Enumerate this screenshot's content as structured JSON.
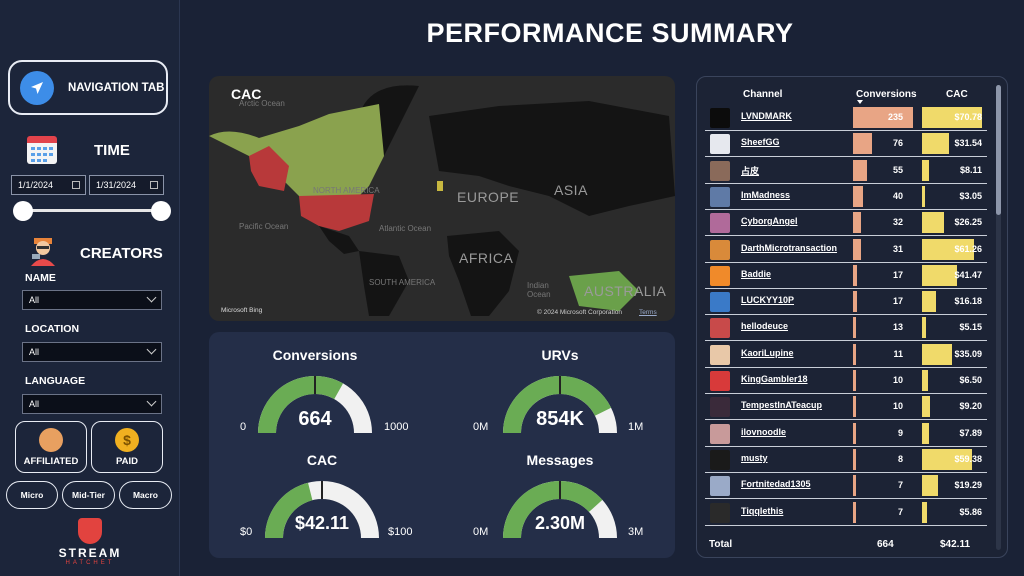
{
  "title": "PERFORMANCE SUMMARY",
  "sidebar": {
    "nav_label": "NAVIGATION TAB",
    "time_label": "TIME",
    "date_start": "1/1/2024",
    "date_end": "1/31/2024",
    "creators_label": "CREATORS",
    "filters": [
      {
        "label": "NAME",
        "value": "All"
      },
      {
        "label": "LOCATION",
        "value": "All"
      },
      {
        "label": "LANGUAGE",
        "value": "All"
      }
    ],
    "types": [
      {
        "label": "AFFILIATED",
        "icon": "handshake-icon"
      },
      {
        "label": "PAID",
        "icon": "dollar-coin-icon"
      }
    ],
    "tiers": [
      "Micro",
      "Mid-Tier",
      "Macro"
    ],
    "logo_text": "STREAM",
    "logo_sub": "HATCHET"
  },
  "map": {
    "title": "CAC",
    "labels": {
      "arctic": "Arctic Ocean",
      "north_america": "NORTH AMERICA",
      "europe": "EUROPE",
      "asia": "ASIA",
      "africa": "AFRICA",
      "south_america": "SOUTH AMERICA",
      "pacific": "Pacific Ocean",
      "atlantic": "Atlantic Ocean",
      "indian": "Indian Ocean",
      "australia": "AUSTRALIA"
    },
    "attribution": "Microsoft Bing",
    "copyright": "© 2024 Microsoft Corporation",
    "terms": "Terms"
  },
  "gauges": [
    {
      "title": "Conversions",
      "value": "664",
      "min": "0",
      "max": "1000",
      "fill": 0.664,
      "target": 0.5
    },
    {
      "title": "URVs",
      "value": "854K",
      "min": "0M",
      "max": "1M",
      "fill": 0.854,
      "target": 0.5
    },
    {
      "title": "CAC",
      "value": "$42.11",
      "min": "$0",
      "max": "$100",
      "fill": 0.4211,
      "target": 0.5
    },
    {
      "title": "Messages",
      "value": "2.30M",
      "min": "0M",
      "max": "3M",
      "fill": 0.767,
      "target": 0.5
    }
  ],
  "table": {
    "headers": {
      "channel": "Channel",
      "conversions": "Conversions",
      "cac": "CAC"
    },
    "rows": [
      {
        "name": "LVNDMARK",
        "conversions": 235,
        "cac": "$70.78",
        "cac_val": 70.78,
        "avatar": "#0c0c0c"
      },
      {
        "name": "SheefGG",
        "conversions": 76,
        "cac": "$31.54",
        "cac_val": 31.54,
        "avatar": "#e6e8ee"
      },
      {
        "name": "占皮",
        "conversions": 55,
        "cac": "$8.11",
        "cac_val": 8.11,
        "avatar": "#8a6a5a"
      },
      {
        "name": "ImMadness",
        "conversions": 40,
        "cac": "$3.05",
        "cac_val": 3.05,
        "avatar": "#5f7aa6"
      },
      {
        "name": "CyborgAngel",
        "conversions": 32,
        "cac": "$26.25",
        "cac_val": 26.25,
        "avatar": "#b06a9a"
      },
      {
        "name": "DarthMicrotransaction",
        "conversions": 31,
        "cac": "$61.26",
        "cac_val": 61.26,
        "avatar": "#d98a3a"
      },
      {
        "name": "Baddie",
        "conversions": 17,
        "cac": "$41.47",
        "cac_val": 41.47,
        "avatar": "#f08a2a"
      },
      {
        "name": "LUCKYY10P",
        "conversions": 17,
        "cac": "$16.18",
        "cac_val": 16.18,
        "avatar": "#3a7ac8"
      },
      {
        "name": "hellodeuce",
        "conversions": 13,
        "cac": "$5.15",
        "cac_val": 5.15,
        "avatar": "#c84a4a"
      },
      {
        "name": "KaoriLupine",
        "conversions": 11,
        "cac": "$35.09",
        "cac_val": 35.09,
        "avatar": "#e8c8a8"
      },
      {
        "name": "KingGambler18",
        "conversions": 10,
        "cac": "$6.50",
        "cac_val": 6.5,
        "avatar": "#d83a3a"
      },
      {
        "name": "TempestInATeacup",
        "conversions": 10,
        "cac": "$9.20",
        "cac_val": 9.2,
        "avatar": "#3a2a3a"
      },
      {
        "name": "ilovnoodle",
        "conversions": 9,
        "cac": "$7.89",
        "cac_val": 7.89,
        "avatar": "#c89a9a"
      },
      {
        "name": "musty",
        "conversions": 8,
        "cac": "$59.38",
        "cac_val": 59.38,
        "avatar": "#1a1a1a"
      },
      {
        "name": "Fortnitedad1305",
        "conversions": 7,
        "cac": "$19.29",
        "cac_val": 19.29,
        "avatar": "#9aaac8"
      },
      {
        "name": "Tiqqlethis",
        "conversions": 7,
        "cac": "$5.86",
        "cac_val": 5.86,
        "avatar": "#2a2a2a"
      }
    ],
    "total_label": "Total",
    "total_conversions": "664",
    "total_cac": "$42.11"
  },
  "colors": {
    "gauge_fill": "#6aac54",
    "gauge_empty": "#f1f1f1",
    "conversion_bar": "#e8a585",
    "cac_bar": "#f0da6a",
    "map_red": "#b8393a",
    "map_green": "#8aa24e"
  }
}
